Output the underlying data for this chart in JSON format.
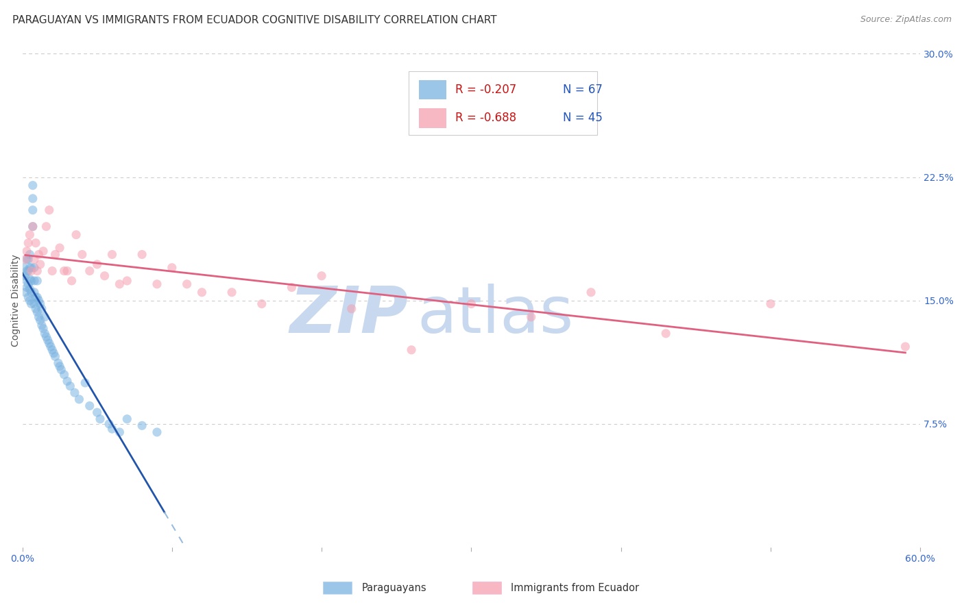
{
  "title": "PARAGUAYAN VS IMMIGRANTS FROM ECUADOR COGNITIVE DISABILITY CORRELATION CHART",
  "source": "Source: ZipAtlas.com",
  "ylabel": "Cognitive Disability",
  "xlabel": "",
  "xlim": [
    0.0,
    0.6
  ],
  "ylim": [
    0.0,
    0.3
  ],
  "ytick_right_vals": [
    0.075,
    0.15,
    0.225,
    0.3
  ],
  "ytick_right_labels": [
    "7.5%",
    "15.0%",
    "22.5%",
    "30.0%"
  ],
  "watermark1": "ZIP",
  "watermark2": "atlas",
  "watermark_color1": "#b8ccee",
  "watermark_color2": "#b8ccee",
  "series1_color": "#7ab3e0",
  "series2_color": "#f5a0b0",
  "trend1_color": "#2255aa",
  "trend2_color": "#e06080",
  "dashed_color": "#99bbdd",
  "legend_r1": "R = -0.207",
  "legend_n1": "N = 67",
  "legend_r2": "R = -0.688",
  "legend_n2": "N = 45",
  "title_fontsize": 11,
  "axis_label_fontsize": 10,
  "tick_fontsize": 10,
  "legend_fontsize": 12,
  "marker_size": 90,
  "marker_alpha": 0.55,
  "background_color": "#ffffff",
  "grid_color": "#cccccc",
  "blue_x": [
    0.001,
    0.001,
    0.002,
    0.002,
    0.003,
    0.003,
    0.003,
    0.004,
    0.004,
    0.004,
    0.004,
    0.005,
    0.005,
    0.005,
    0.005,
    0.005,
    0.006,
    0.006,
    0.006,
    0.006,
    0.007,
    0.007,
    0.007,
    0.007,
    0.008,
    0.008,
    0.008,
    0.008,
    0.009,
    0.009,
    0.01,
    0.01,
    0.01,
    0.011,
    0.011,
    0.012,
    0.012,
    0.013,
    0.013,
    0.014,
    0.015,
    0.015,
    0.016,
    0.017,
    0.018,
    0.019,
    0.02,
    0.021,
    0.022,
    0.024,
    0.025,
    0.026,
    0.028,
    0.03,
    0.032,
    0.035,
    0.038,
    0.042,
    0.045,
    0.05,
    0.052,
    0.058,
    0.06,
    0.065,
    0.07,
    0.08,
    0.09
  ],
  "blue_y": [
    0.163,
    0.17,
    0.155,
    0.165,
    0.158,
    0.168,
    0.175,
    0.152,
    0.16,
    0.168,
    0.175,
    0.15,
    0.157,
    0.163,
    0.17,
    0.178,
    0.148,
    0.155,
    0.162,
    0.17,
    0.195,
    0.205,
    0.212,
    0.22,
    0.148,
    0.155,
    0.162,
    0.17,
    0.145,
    0.152,
    0.143,
    0.152,
    0.162,
    0.14,
    0.15,
    0.138,
    0.148,
    0.135,
    0.145,
    0.133,
    0.13,
    0.14,
    0.128,
    0.126,
    0.124,
    0.122,
    0.12,
    0.118,
    0.116,
    0.112,
    0.11,
    0.108,
    0.105,
    0.101,
    0.098,
    0.094,
    0.09,
    0.1,
    0.086,
    0.082,
    0.078,
    0.075,
    0.072,
    0.07,
    0.078,
    0.074,
    0.07
  ],
  "pink_x": [
    0.002,
    0.003,
    0.004,
    0.005,
    0.006,
    0.007,
    0.008,
    0.009,
    0.01,
    0.011,
    0.012,
    0.014,
    0.016,
    0.018,
    0.02,
    0.022,
    0.025,
    0.028,
    0.03,
    0.033,
    0.036,
    0.04,
    0.045,
    0.05,
    0.055,
    0.06,
    0.065,
    0.07,
    0.08,
    0.09,
    0.1,
    0.11,
    0.12,
    0.14,
    0.16,
    0.18,
    0.2,
    0.22,
    0.26,
    0.3,
    0.34,
    0.38,
    0.43,
    0.5,
    0.59
  ],
  "pink_y": [
    0.175,
    0.18,
    0.185,
    0.19,
    0.168,
    0.195,
    0.175,
    0.185,
    0.168,
    0.178,
    0.172,
    0.18,
    0.195,
    0.205,
    0.168,
    0.178,
    0.182,
    0.168,
    0.168,
    0.162,
    0.19,
    0.178,
    0.168,
    0.172,
    0.165,
    0.178,
    0.16,
    0.162,
    0.178,
    0.16,
    0.17,
    0.16,
    0.155,
    0.155,
    0.148,
    0.158,
    0.165,
    0.145,
    0.12,
    0.148,
    0.14,
    0.155,
    0.13,
    0.148,
    0.122
  ]
}
